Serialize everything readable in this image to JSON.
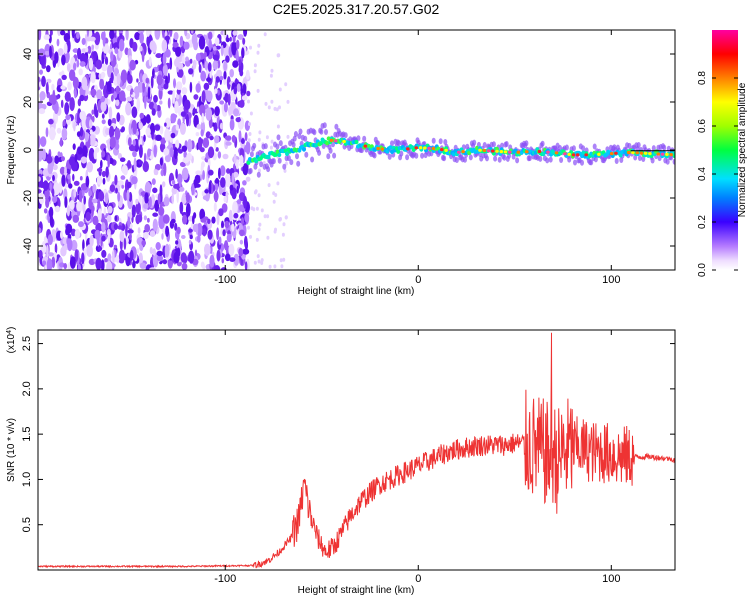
{
  "title": "C2E5.2025.317.20.57.G02",
  "chart_data": [
    {
      "type": "heatmap",
      "xlabel": "Height of straight line (km)",
      "ylabel": "Frequency (Hz)",
      "xlim": [
        -197,
        133
      ],
      "ylim": [
        -50,
        50
      ],
      "xticks": [
        -100,
        0,
        100
      ],
      "yticks": [
        -40,
        -20,
        0,
        20,
        40
      ],
      "colorbar": {
        "label": "Normalized spectral amplitude",
        "range": [
          0,
          1
        ],
        "ticks": [
          "0.0",
          "0.2",
          "0.4",
          "0.6",
          "0.8"
        ]
      },
      "ridge": [
        [
          -88,
          -5
        ],
        [
          -80,
          -3
        ],
        [
          -70,
          -1
        ],
        [
          -60,
          1
        ],
        [
          -52,
          3
        ],
        [
          -45,
          4
        ],
        [
          -38,
          3.5
        ],
        [
          -30,
          2
        ],
        [
          -20,
          0.5
        ],
        [
          -10,
          0
        ],
        [
          0,
          1
        ],
        [
          10,
          0.5
        ],
        [
          20,
          -1
        ],
        [
          30,
          0
        ],
        [
          40,
          -0.5
        ],
        [
          50,
          -1
        ],
        [
          60,
          -0.5
        ],
        [
          70,
          -1
        ],
        [
          80,
          -2
        ],
        [
          90,
          -2
        ],
        [
          100,
          -1.5
        ],
        [
          110,
          -1
        ],
        [
          120,
          -1.5
        ],
        [
          133,
          -2
        ]
      ],
      "noise_region_x": [
        -197,
        -88
      ]
    },
    {
      "type": "line",
      "xlabel": "Height of straight line (km)",
      "ylabel": "SNR (10 * v/v)",
      "y_multiplier": "(x10^4)",
      "y_multiplier_base": "(x10",
      "y_multiplier_exp": "4",
      "y_multiplier_close": ")",
      "xlim": [
        -197,
        133
      ],
      "ylim": [
        0,
        2.65
      ],
      "xticks": [
        -100,
        0,
        100
      ],
      "yticks": [
        "0.5",
        "1.0",
        "1.5",
        "2.0",
        "2.5"
      ],
      "line_color": "#ee3333",
      "envelope": [
        [
          -197,
          0.04
        ],
        [
          -120,
          0.04
        ],
        [
          -85,
          0.05
        ],
        [
          -78,
          0.1
        ],
        [
          -72,
          0.2
        ],
        [
          -66,
          0.35
        ],
        [
          -62,
          0.55
        ],
        [
          -59,
          0.95
        ],
        [
          -56,
          0.6
        ],
        [
          -52,
          0.35
        ],
        [
          -48,
          0.2
        ],
        [
          -44,
          0.25
        ],
        [
          -40,
          0.4
        ],
        [
          -35,
          0.6
        ],
        [
          -30,
          0.75
        ],
        [
          -25,
          0.85
        ],
        [
          -20,
          0.95
        ],
        [
          -15,
          1.0
        ],
        [
          -10,
          1.05
        ],
        [
          -5,
          1.1
        ],
        [
          0,
          1.15
        ],
        [
          5,
          1.2
        ],
        [
          10,
          1.25
        ],
        [
          15,
          1.3
        ],
        [
          20,
          1.33
        ],
        [
          25,
          1.35
        ],
        [
          30,
          1.37
        ],
        [
          35,
          1.38
        ],
        [
          40,
          1.38
        ],
        [
          45,
          1.38
        ],
        [
          50,
          1.4
        ],
        [
          55,
          1.4
        ],
        [
          60,
          1.35
        ],
        [
          65,
          1.3
        ],
        [
          68,
          1.25
        ],
        [
          70,
          1.3
        ],
        [
          72,
          1.2
        ],
        [
          75,
          1.3
        ],
        [
          80,
          1.35
        ],
        [
          85,
          1.35
        ],
        [
          90,
          1.3
        ],
        [
          95,
          1.3
        ],
        [
          100,
          1.28
        ],
        [
          105,
          1.25
        ],
        [
          110,
          1.25
        ],
        [
          115,
          1.25
        ],
        [
          120,
          1.25
        ],
        [
          125,
          1.24
        ],
        [
          133,
          1.22
        ]
      ],
      "peak": [
        69,
        2.62
      ]
    }
  ]
}
